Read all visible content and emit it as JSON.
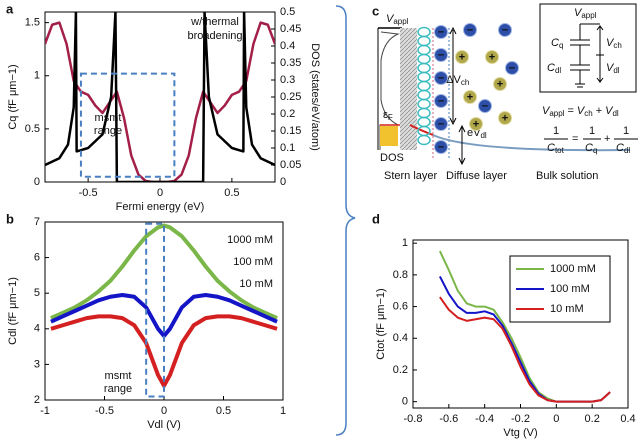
{
  "chart_data": [
    {
      "type": "line",
      "panel": "a",
      "xlabel": "Fermi energy (eV)",
      "ylabel": "Cq (fF μm−1)",
      "y2label": "DOS (states/eV/atom)",
      "xlim": [
        -0.8,
        0.8
      ],
      "ylim": [
        0,
        1.6
      ],
      "y2lim": [
        0,
        0.5
      ],
      "xticks": [
        -0.5,
        0,
        0.5
      ],
      "yticks": [
        0,
        0.5,
        1,
        1.5
      ],
      "y2ticks": [
        0,
        0.05,
        0.1,
        0.15,
        0.2,
        0.25,
        0.3,
        0.35,
        0.4,
        0.45,
        0.5
      ],
      "line_width": 2.5,
      "annotation": [
        "w/thermal",
        "broadening"
      ],
      "msmt": {
        "label": [
          "msmt",
          "range"
        ],
        "x": [
          -0.55,
          0.1
        ],
        "y": [
          0.05,
          1.02
        ]
      },
      "series": [
        {
          "name": "Cq",
          "color": "#a31f48",
          "axis": "y",
          "x": [
            -0.8,
            -0.75,
            -0.7,
            -0.65,
            -0.6,
            -0.55,
            -0.5,
            -0.45,
            -0.4,
            -0.35,
            -0.3,
            -0.25,
            -0.2,
            -0.15,
            -0.1,
            -0.05,
            0,
            0.05,
            0.1,
            0.15,
            0.2,
            0.25,
            0.3,
            0.35,
            0.4,
            0.45,
            0.5,
            0.55,
            0.6,
            0.65,
            0.7,
            0.75,
            0.8
          ],
          "values": [
            1.3,
            1.48,
            1.5,
            1.3,
            0.95,
            0.85,
            0.82,
            0.72,
            0.65,
            0.75,
            0.85,
            0.6,
            0.25,
            0.07,
            0.01,
            0,
            0,
            0,
            0.01,
            0.07,
            0.25,
            0.6,
            0.85,
            0.75,
            0.65,
            0.72,
            0.82,
            0.85,
            0.95,
            1.3,
            1.5,
            1.48,
            1.3
          ]
        },
        {
          "name": "DOS",
          "color": "#000000",
          "axis": "y2",
          "x": [
            -0.8,
            -0.7,
            -0.64,
            -0.6,
            -0.585,
            -0.58,
            -0.5,
            -0.4,
            -0.34,
            -0.31,
            -0.3,
            0.3,
            0.31,
            0.34,
            0.4,
            0.5,
            0.58,
            0.585,
            0.6,
            0.64,
            0.7,
            0.8
          ],
          "values": [
            0.05,
            0.07,
            0.11,
            0.22,
            0.5,
            0.09,
            0.1,
            0.14,
            0.25,
            0.5,
            0,
            0,
            0.5,
            0.25,
            0.14,
            0.1,
            0.09,
            0.5,
            0.22,
            0.11,
            0.07,
            0.05
          ]
        }
      ]
    },
    {
      "type": "line",
      "panel": "b",
      "xlabel": "Vdl (V)",
      "ylabel": "Cdl (fF μm−1)",
      "xlim": [
        -1,
        1
      ],
      "ylim": [
        2,
        7
      ],
      "xticks": [
        -1,
        -0.5,
        0,
        0.5,
        1
      ],
      "yticks": [
        2,
        3,
        4,
        5,
        6,
        7
      ],
      "line_width": 4,
      "legend": "upper right",
      "legend_frame": false,
      "msmt": {
        "label": [
          "msmt",
          "range"
        ],
        "x": [
          -0.15,
          0
        ],
        "y": [
          2.1,
          6.95
        ]
      },
      "x": [
        -0.95,
        -0.85,
        -0.75,
        -0.65,
        -0.55,
        -0.45,
        -0.35,
        -0.25,
        -0.15,
        -0.05,
        0,
        0.05,
        0.15,
        0.25,
        0.35,
        0.45,
        0.55,
        0.65,
        0.75,
        0.85,
        0.95
      ],
      "series": [
        {
          "name": "1000 mM",
          "color": "#7ab648",
          "values": [
            4.3,
            4.45,
            4.6,
            4.8,
            5.05,
            5.35,
            5.75,
            6.2,
            6.6,
            6.85,
            6.9,
            6.85,
            6.6,
            6.2,
            5.75,
            5.35,
            5.05,
            4.8,
            4.6,
            4.45,
            4.3
          ]
        },
        {
          "name": "100 mM",
          "color": "#1515c8",
          "values": [
            4.2,
            4.35,
            4.5,
            4.65,
            4.8,
            4.9,
            4.95,
            4.9,
            4.6,
            4.0,
            3.8,
            4.0,
            4.6,
            4.9,
            4.95,
            4.9,
            4.8,
            4.65,
            4.5,
            4.35,
            4.2
          ]
        },
        {
          "name": "10 mM",
          "color": "#d42020",
          "values": [
            4.0,
            4.1,
            4.2,
            4.3,
            4.35,
            4.35,
            4.3,
            4.1,
            3.6,
            2.7,
            2.4,
            2.7,
            3.6,
            4.1,
            4.3,
            4.35,
            4.35,
            4.3,
            4.2,
            4.1,
            4.0
          ]
        }
      ]
    },
    {
      "type": "line",
      "panel": "d",
      "xlabel": "Vtg (V)",
      "ylabel": "Ctot (fF μm−1)",
      "xlim": [
        -0.8,
        0.4
      ],
      "ylim": [
        -0.04,
        1.02
      ],
      "xticks": [
        -0.8,
        -0.6,
        -0.4,
        -0.2,
        0,
        0.2,
        0.4
      ],
      "yticks": [
        0,
        0.2,
        0.4,
        0.6,
        0.8,
        1
      ],
      "line_width": 2,
      "legend": "upper right",
      "legend_frame": true,
      "x": [
        -0.65,
        -0.6,
        -0.55,
        -0.5,
        -0.45,
        -0.4,
        -0.35,
        -0.3,
        -0.25,
        -0.2,
        -0.15,
        -0.1,
        -0.05,
        0,
        0.05,
        0.1,
        0.15,
        0.2,
        0.25,
        0.28,
        0.3
      ],
      "series": [
        {
          "name": "1000 mM",
          "color": "#7ab648",
          "values": [
            0.95,
            0.83,
            0.7,
            0.62,
            0.6,
            0.6,
            0.58,
            0.5,
            0.4,
            0.28,
            0.15,
            0.06,
            0.02,
            0,
            0,
            0,
            0,
            0,
            0.01,
            0.04,
            0.06
          ]
        },
        {
          "name": "100 mM",
          "color": "#1515c8",
          "values": [
            0.79,
            0.68,
            0.6,
            0.56,
            0.56,
            0.57,
            0.55,
            0.48,
            0.37,
            0.25,
            0.13,
            0.05,
            0.01,
            0,
            0,
            0,
            0,
            0,
            0.01,
            0.04,
            0.06
          ]
        },
        {
          "name": "10 mM",
          "color": "#d42020",
          "values": [
            0.66,
            0.58,
            0.53,
            0.51,
            0.52,
            0.53,
            0.52,
            0.46,
            0.35,
            0.22,
            0.11,
            0.04,
            0.01,
            0,
            0,
            0,
            0,
            0,
            0.01,
            0.04,
            0.06
          ]
        }
      ]
    }
  ],
  "diagram": {
    "panel": "c",
    "v_appl": [
      "V",
      "appl"
    ],
    "delta_v_ch": [
      "eΔV",
      "ch"
    ],
    "e_v_dl": [
      "eV",
      "dl"
    ],
    "eps_f": [
      "ε",
      "F"
    ],
    "dos": "DOS",
    "layers": [
      "Stern layer",
      "Diffuse layer",
      "Bulk solution"
    ],
    "anion": "−",
    "cation": "+",
    "circuit": {
      "v_appl": [
        "V",
        "appl"
      ],
      "c_q": [
        "C",
        "q"
      ],
      "v_ch": [
        "V",
        "ch"
      ],
      "c_dl": [
        "C",
        "dl"
      ],
      "v_dl": [
        "V",
        "dl"
      ]
    },
    "eq1": {
      "lhs": [
        "V",
        "appl"
      ],
      "eq": "=",
      "t1": [
        "V",
        "ch"
      ],
      "plus": "+",
      "t2": [
        "V",
        "dl"
      ]
    },
    "eq2": {
      "one": "1",
      "lhs": [
        "C",
        "tot"
      ],
      "eq": "=",
      "t1": [
        "C",
        "q"
      ],
      "plus": "+",
      "t2": [
        "C",
        "dl"
      ]
    }
  }
}
